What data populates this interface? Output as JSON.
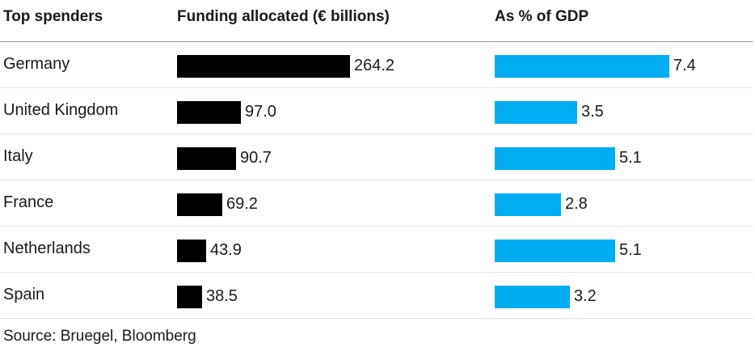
{
  "headers": {
    "country": "Top spenders",
    "funding": "Funding allocated (€ billions)",
    "gdp": "As % of GDP"
  },
  "source": "Source: Bruegel, Bloomberg",
  "colors": {
    "funding_bar": "#000000",
    "gdp_bar": "#00adf2"
  },
  "chart_data": {
    "type": "bar",
    "orientation": "horizontal",
    "categories": [
      "Germany",
      "United Kingdom",
      "Italy",
      "France",
      "Netherlands",
      "Spain"
    ],
    "series": [
      {
        "name": "Funding allocated (€ billions)",
        "values": [
          264.2,
          97.0,
          90.7,
          69.2,
          43.9,
          38.5
        ],
        "labels": [
          "264.2",
          "97.0",
          "90.7",
          "69.2",
          "43.9",
          "38.5"
        ]
      },
      {
        "name": "As % of GDP",
        "values": [
          7.4,
          3.5,
          5.1,
          2.8,
          5.1,
          3.2
        ],
        "labels": [
          "7.4",
          "3.5",
          "5.1",
          "2.8",
          "5.1",
          "3.2"
        ]
      }
    ]
  }
}
